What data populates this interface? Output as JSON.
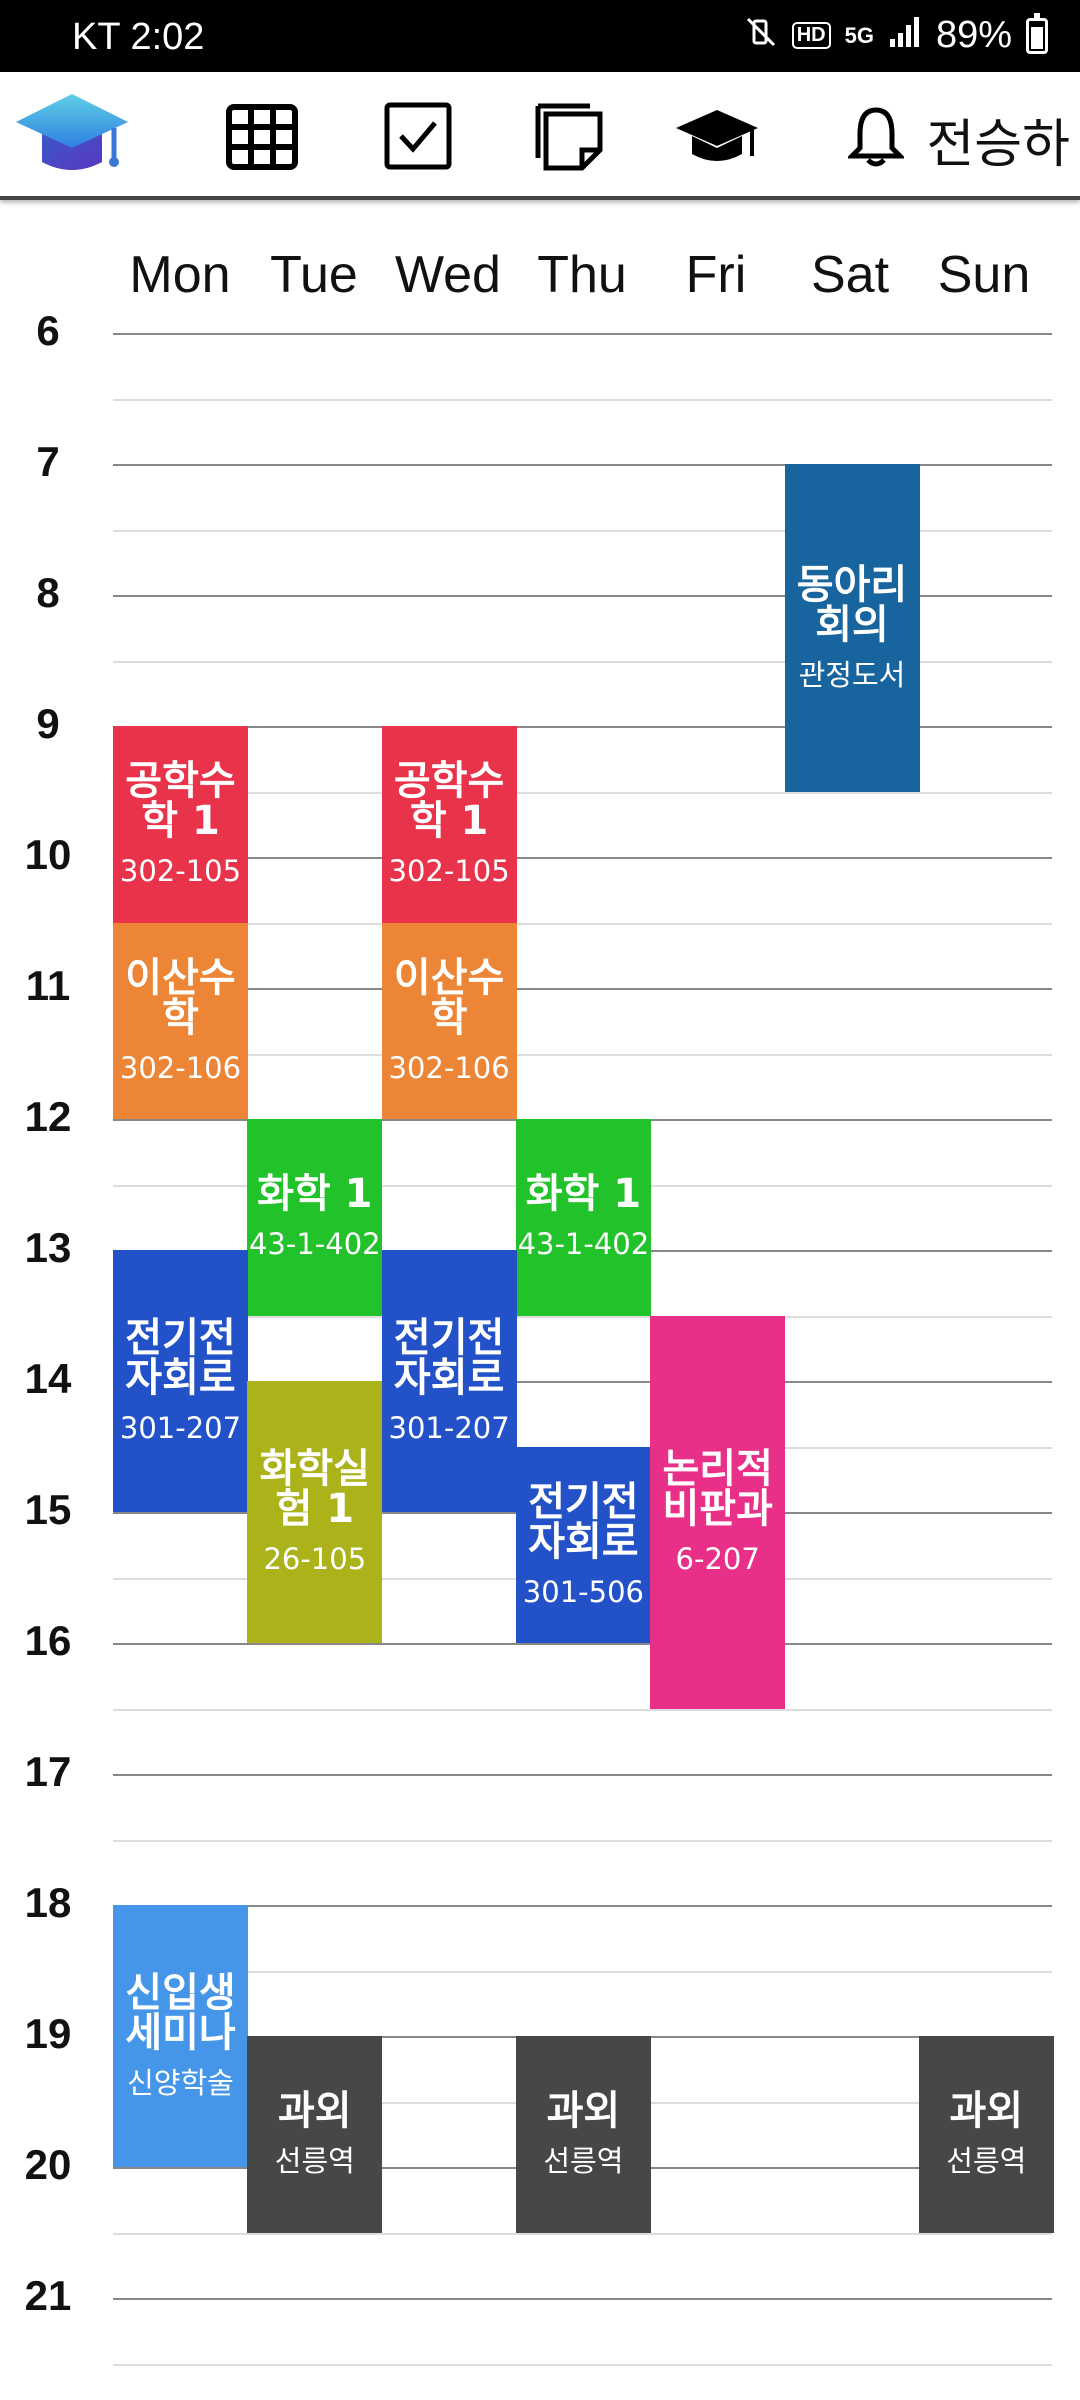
{
  "status_bar": {
    "carrier": "KT",
    "time": "2:02",
    "network": "5G",
    "hd": "HD",
    "battery": "89%"
  },
  "toolbar": {
    "user_name": "전승하",
    "icons": [
      "graduation-cap-logo-icon",
      "grid-icon",
      "checkbox-icon",
      "note-icon",
      "mortarboard-icon",
      "bell-icon"
    ]
  },
  "days": [
    "Mon",
    "Tue",
    "Wed",
    "Thu",
    "Fri",
    "Sat",
    "Sun"
  ],
  "hours": [
    "6",
    "7",
    "8",
    "9",
    "10",
    "11",
    "12",
    "13",
    "14",
    "15",
    "16",
    "17",
    "18",
    "19",
    "20",
    "21"
  ],
  "events": [
    {
      "day": 0,
      "start": 9.0,
      "end": 10.5,
      "title": "공학수학 1",
      "room": "302-105",
      "color": "#e8334a"
    },
    {
      "day": 2,
      "start": 9.0,
      "end": 10.5,
      "title": "공학수학 1",
      "room": "302-105",
      "color": "#e8334a"
    },
    {
      "day": 0,
      "start": 10.5,
      "end": 12.0,
      "title": "이산수학",
      "room": "302-106",
      "color": "#ec8535"
    },
    {
      "day": 2,
      "start": 10.5,
      "end": 12.0,
      "title": "이산수학",
      "room": "302-106",
      "color": "#ec8535"
    },
    {
      "day": 1,
      "start": 12.0,
      "end": 13.5,
      "title": "화학 1",
      "room": "43-1-402",
      "color": "#22c22a"
    },
    {
      "day": 3,
      "start": 12.0,
      "end": 13.5,
      "title": "화학 1",
      "room": "43-1-402",
      "color": "#22c22a"
    },
    {
      "day": 0,
      "start": 13.0,
      "end": 15.0,
      "title": "전기전자회로",
      "room": "301-207",
      "color": "#2251c8"
    },
    {
      "day": 2,
      "start": 13.0,
      "end": 15.0,
      "title": "전기전자회로",
      "room": "301-207",
      "color": "#2251c8"
    },
    {
      "day": 1,
      "start": 14.0,
      "end": 16.0,
      "title": "화학실험 1",
      "room": "26-105",
      "color": "#abb21a"
    },
    {
      "day": 3,
      "start": 14.5,
      "end": 16.0,
      "title": "전기전자회로",
      "room": "301-506",
      "color": "#2251c8"
    },
    {
      "day": 4,
      "start": 13.5,
      "end": 16.5,
      "title": "논리적비판과",
      "room": "6-207",
      "color": "#e93088"
    },
    {
      "day": 5,
      "start": 7.0,
      "end": 9.5,
      "title": "동아리회의",
      "room": "관정도서",
      "color": "#17649f"
    },
    {
      "day": 0,
      "start": 18.0,
      "end": 20.0,
      "title": "신입생세미나",
      "room": "신양학술",
      "color": "#4596e8"
    },
    {
      "day": 1,
      "start": 19.0,
      "end": 20.5,
      "title": "과외",
      "room": "선릉역",
      "color": "#474747"
    },
    {
      "day": 3,
      "start": 19.0,
      "end": 20.5,
      "title": "과외",
      "room": "선릉역",
      "color": "#474747"
    },
    {
      "day": 6,
      "start": 19.0,
      "end": 20.5,
      "title": "과외",
      "room": "선릉역",
      "color": "#474747"
    }
  ]
}
